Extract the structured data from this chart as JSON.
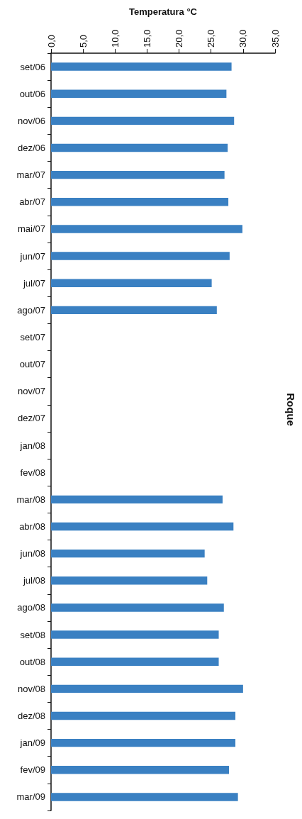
{
  "chart_data": {
    "type": "bar",
    "orientation": "horizontal",
    "xlabel": "Temperatura °C",
    "categories": [
      "set/06",
      "out/06",
      "nov/06",
      "dez/06",
      "mar/07",
      "abr/07",
      "mai/07",
      "jun/07",
      "jul/07",
      "ago/07",
      "set/07",
      "out/07",
      "nov/07",
      "dez/07",
      "jan/08",
      "fev/08",
      "mar/08",
      "abr/08",
      "jun/08",
      "jul/08",
      "ago/08",
      "set/08",
      "out/08",
      "nov/08",
      "dez/08",
      "jan/09",
      "fev/09",
      "mar/09"
    ],
    "values": [
      28.2,
      27.4,
      28.6,
      27.6,
      27.1,
      27.7,
      29.9,
      27.9,
      25.1,
      25.9,
      null,
      null,
      null,
      null,
      null,
      null,
      26.8,
      28.5,
      24.0,
      24.4,
      27.0,
      26.2,
      26.2,
      30.0,
      28.8,
      28.8,
      27.8,
      29.2
    ],
    "color": "#3a80c2",
    "xlim": [
      0,
      35
    ],
    "xticks": [
      {
        "value": 0,
        "label": "0,0"
      },
      {
        "value": 5,
        "label": "5,0"
      },
      {
        "value": 10,
        "label": "10,0"
      },
      {
        "value": 15,
        "label": "15,0"
      },
      {
        "value": 20,
        "label": "20,0"
      },
      {
        "value": 25,
        "label": "25,0"
      },
      {
        "value": 30,
        "label": "30,0"
      },
      {
        "value": 35,
        "label": "35,0"
      }
    ],
    "grid": false,
    "annotations": [
      "Roque"
    ]
  }
}
